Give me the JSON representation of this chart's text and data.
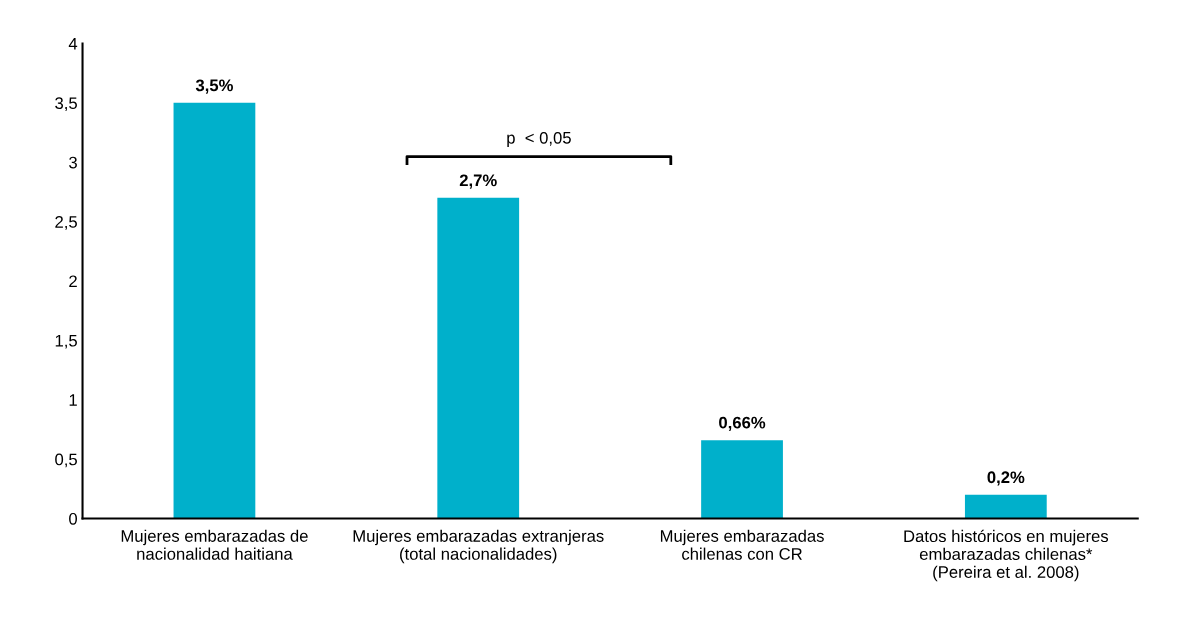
{
  "chart_data": {
    "type": "bar",
    "categories": [
      "Mujeres embarazadas de\nnacionalidad haitiana",
      "Mujeres embarazadas extranjeras\n(total nacionalidades)",
      "Mujeres embarazadas\nchilenas con CR",
      "Datos históricos en mujeres\nembarazadas chilenas*\n(Pereira et al. 2008)"
    ],
    "values": [
      3.5,
      2.7,
      0.66,
      0.2
    ],
    "value_labels": [
      "3,5%",
      "2,7%",
      "0,66%",
      "0,2%"
    ],
    "color": "#00b0cb",
    "ylim": [
      0,
      4
    ],
    "yticks": [
      0,
      {
        "value": 0.5,
        "label": "0,5"
      },
      1,
      {
        "value": 1.5,
        "label": "1,5"
      },
      2,
      {
        "value": 2.5,
        "label": "2,5"
      },
      3,
      {
        "value": 3.5,
        "label": "3,5"
      },
      4
    ],
    "grid": false,
    "annotations": [
      "p  < 0,05"
    ]
  }
}
